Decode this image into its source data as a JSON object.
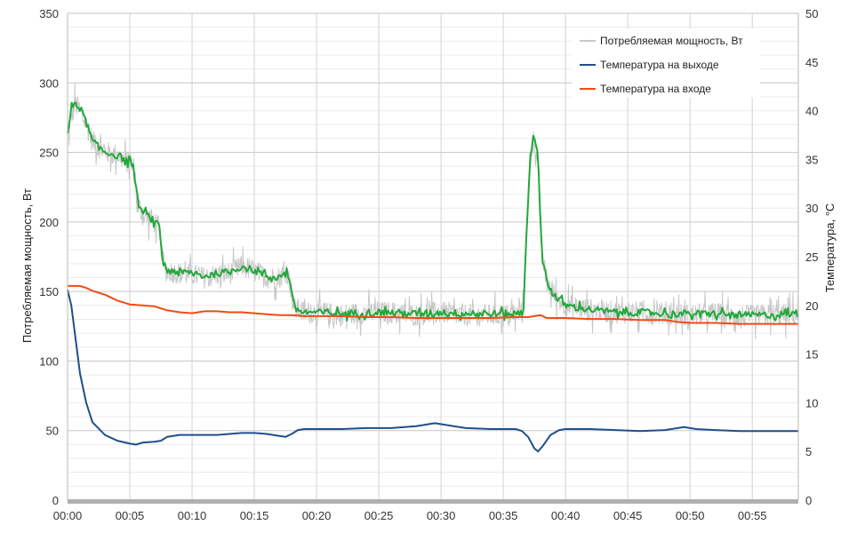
{
  "chart_data": {
    "type": "line",
    "title": "",
    "x_unit": "minutes",
    "x_ticks": [
      "00:00",
      "00:05",
      "00:10",
      "00:15",
      "00:20",
      "00:25",
      "00:30",
      "00:35",
      "00:40",
      "00:45",
      "00:50",
      "00:55"
    ],
    "xlim": [
      0,
      58.7
    ],
    "ylabel_left": "Потребляемая мощность, Вт",
    "ylim_left": [
      0,
      350
    ],
    "yticks_left": [
      "0",
      "50",
      "100",
      "150",
      "200",
      "250",
      "300",
      "350"
    ],
    "ylabel_right": "Температура, °С",
    "ylim_right": [
      0,
      50
    ],
    "yticks_right": [
      "0",
      "5",
      "10",
      "15",
      "20",
      "25",
      "30",
      "35",
      "40",
      "45",
      "50"
    ],
    "grid": true,
    "legend_position": "top-right",
    "series": [
      {
        "name": "Потребляемая мощность, Вт",
        "axis": "left",
        "color": "#c8c8c8",
        "noise_amplitude": 8,
        "points": [
          [
            0,
            260
          ],
          [
            0.3,
            275
          ],
          [
            0.6,
            285
          ],
          [
            1,
            280
          ],
          [
            1.5,
            270
          ],
          [
            2,
            258
          ],
          [
            3,
            250
          ],
          [
            4,
            248
          ],
          [
            5,
            242
          ],
          [
            5.3,
            240
          ],
          [
            5.6,
            215
          ],
          [
            6,
            205
          ],
          [
            6.5,
            203
          ],
          [
            7,
            200
          ],
          [
            7.4,
            195
          ],
          [
            7.6,
            175
          ],
          [
            7.9,
            165
          ],
          [
            9,
            163
          ],
          [
            10,
            162
          ],
          [
            11,
            160
          ],
          [
            12,
            162
          ],
          [
            13,
            163
          ],
          [
            14,
            168
          ],
          [
            15,
            165
          ],
          [
            16,
            160
          ],
          [
            17,
            160
          ],
          [
            17.6,
            165
          ],
          [
            17.9,
            155
          ],
          [
            18.2,
            138
          ],
          [
            19,
            135
          ],
          [
            20,
            135
          ],
          [
            22,
            133
          ],
          [
            24,
            135
          ],
          [
            26,
            135
          ],
          [
            28,
            133
          ],
          [
            30,
            135
          ],
          [
            32,
            133
          ],
          [
            34,
            133
          ],
          [
            36,
            133
          ],
          [
            36.6,
            135
          ],
          [
            36.9,
            200
          ],
          [
            37.2,
            250
          ],
          [
            37.5,
            260
          ],
          [
            37.8,
            245
          ],
          [
            38.1,
            175
          ],
          [
            38.5,
            158
          ],
          [
            39,
            148
          ],
          [
            40,
            140
          ],
          [
            42,
            137
          ],
          [
            44,
            135
          ],
          [
            46,
            135
          ],
          [
            48,
            134
          ],
          [
            50,
            133
          ],
          [
            52,
            134
          ],
          [
            54,
            132
          ],
          [
            56,
            133
          ],
          [
            58.7,
            133
          ]
        ]
      },
      {
        "name": "",
        "axis": "left",
        "color": "#22a83a",
        "noise_amplitude": 2.5,
        "points": [
          [
            0,
            263
          ],
          [
            0.3,
            280
          ],
          [
            0.6,
            287
          ],
          [
            1,
            282
          ],
          [
            1.5,
            272
          ],
          [
            2,
            258
          ],
          [
            3,
            250
          ],
          [
            4,
            248
          ],
          [
            5,
            243
          ],
          [
            5.3,
            240
          ],
          [
            5.6,
            215
          ],
          [
            6,
            207
          ],
          [
            6.5,
            204
          ],
          [
            7,
            200
          ],
          [
            7.4,
            196
          ],
          [
            7.6,
            175
          ],
          [
            7.9,
            166
          ],
          [
            9,
            164
          ],
          [
            10,
            163
          ],
          [
            11,
            161
          ],
          [
            12,
            163
          ],
          [
            13,
            164
          ],
          [
            14,
            168
          ],
          [
            15,
            165
          ],
          [
            16,
            161
          ],
          [
            17,
            160
          ],
          [
            17.6,
            165
          ],
          [
            17.9,
            156
          ],
          [
            18.2,
            138
          ],
          [
            19,
            135
          ],
          [
            20,
            135
          ],
          [
            22,
            134
          ],
          [
            24,
            135
          ],
          [
            26,
            135
          ],
          [
            28,
            134
          ],
          [
            30,
            135
          ],
          [
            32,
            134
          ],
          [
            34,
            134
          ],
          [
            36,
            134
          ],
          [
            36.6,
            135
          ],
          [
            36.9,
            200
          ],
          [
            37.2,
            252
          ],
          [
            37.5,
            260
          ],
          [
            37.8,
            246
          ],
          [
            38.1,
            176
          ],
          [
            38.5,
            158
          ],
          [
            39,
            148
          ],
          [
            40,
            140
          ],
          [
            42,
            137
          ],
          [
            44,
            135
          ],
          [
            46,
            135
          ],
          [
            48,
            134
          ],
          [
            50,
            134
          ],
          [
            52,
            134
          ],
          [
            54,
            133
          ],
          [
            56,
            133
          ],
          [
            58.7,
            134
          ]
        ]
      },
      {
        "name": "Температура на выходе",
        "axis": "right",
        "color": "#1f4e8c",
        "noise_amplitude": 0,
        "points": [
          [
            0,
            21.6
          ],
          [
            0.3,
            20
          ],
          [
            0.6,
            17
          ],
          [
            1,
            13
          ],
          [
            1.5,
            10
          ],
          [
            2,
            8
          ],
          [
            3,
            6.7
          ],
          [
            4,
            6.1
          ],
          [
            5,
            5.8
          ],
          [
            5.5,
            5.7
          ],
          [
            6,
            5.9
          ],
          [
            7,
            6
          ],
          [
            7.5,
            6.1
          ],
          [
            8,
            6.5
          ],
          [
            9,
            6.7
          ],
          [
            10,
            6.7
          ],
          [
            11,
            6.7
          ],
          [
            12,
            6.7
          ],
          [
            13,
            6.8
          ],
          [
            14,
            6.9
          ],
          [
            15,
            6.9
          ],
          [
            16,
            6.8
          ],
          [
            17,
            6.6
          ],
          [
            17.5,
            6.5
          ],
          [
            18,
            6.8
          ],
          [
            18.5,
            7.2
          ],
          [
            19,
            7.3
          ],
          [
            20,
            7.3
          ],
          [
            22,
            7.3
          ],
          [
            24,
            7.4
          ],
          [
            26,
            7.4
          ],
          [
            28,
            7.6
          ],
          [
            29.5,
            7.9
          ],
          [
            31,
            7.6
          ],
          [
            32,
            7.4
          ],
          [
            34,
            7.3
          ],
          [
            36,
            7.3
          ],
          [
            36.5,
            7.1
          ],
          [
            37,
            6.5
          ],
          [
            37.5,
            5.3
          ],
          [
            37.8,
            5
          ],
          [
            38.2,
            5.6
          ],
          [
            38.8,
            6.7
          ],
          [
            39.5,
            7.2
          ],
          [
            40,
            7.3
          ],
          [
            42,
            7.3
          ],
          [
            44,
            7.2
          ],
          [
            46,
            7.1
          ],
          [
            48,
            7.2
          ],
          [
            49.5,
            7.5
          ],
          [
            50.5,
            7.3
          ],
          [
            52,
            7.2
          ],
          [
            54,
            7.1
          ],
          [
            56,
            7.1
          ],
          [
            58.7,
            7.1
          ]
        ]
      },
      {
        "name": "Температура на входе",
        "axis": "right",
        "color": "#f24b14",
        "noise_amplitude": 0,
        "points": [
          [
            0,
            22
          ],
          [
            1,
            22
          ],
          [
            1.5,
            21.8
          ],
          [
            2,
            21.5
          ],
          [
            3,
            21.1
          ],
          [
            4,
            20.5
          ],
          [
            5,
            20.1
          ],
          [
            6,
            20
          ],
          [
            7,
            19.9
          ],
          [
            8,
            19.5
          ],
          [
            9,
            19.3
          ],
          [
            10,
            19.2
          ],
          [
            11,
            19.4
          ],
          [
            12,
            19.4
          ],
          [
            13,
            19.3
          ],
          [
            14,
            19.3
          ],
          [
            15,
            19.2
          ],
          [
            16,
            19.1
          ],
          [
            17,
            19
          ],
          [
            18,
            19
          ],
          [
            19,
            18.9
          ],
          [
            20,
            18.9
          ],
          [
            22,
            18.9
          ],
          [
            24,
            18.8
          ],
          [
            26,
            18.8
          ],
          [
            28,
            18.7
          ],
          [
            30,
            18.7
          ],
          [
            32,
            18.7
          ],
          [
            34,
            18.7
          ],
          [
            36,
            18.8
          ],
          [
            37,
            18.8
          ],
          [
            38,
            19
          ],
          [
            38.5,
            18.7
          ],
          [
            40,
            18.7
          ],
          [
            42,
            18.6
          ],
          [
            44,
            18.6
          ],
          [
            46,
            18.5
          ],
          [
            48,
            18.5
          ],
          [
            49,
            18.3
          ],
          [
            50,
            18.2
          ],
          [
            52,
            18.2
          ],
          [
            54,
            18.1
          ],
          [
            56,
            18.1
          ],
          [
            58,
            18.1
          ],
          [
            58.7,
            18.1
          ]
        ]
      }
    ]
  }
}
